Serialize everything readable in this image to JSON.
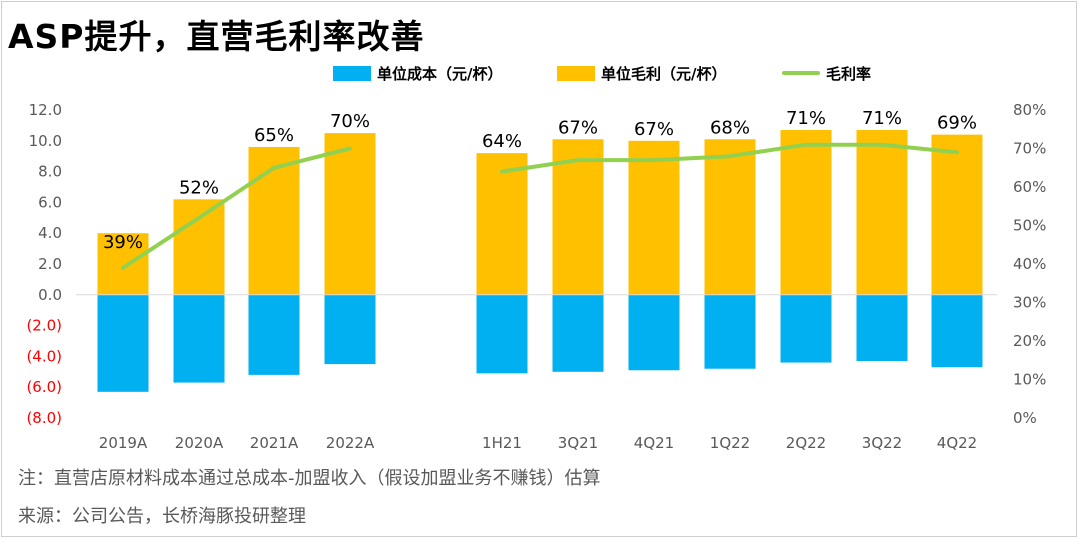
{
  "title": "ASP提升，直营毛利率改善",
  "legend": [
    {
      "label": "单位成本（元/杯）",
      "color": "#00B0F0",
      "kind": "bar"
    },
    {
      "label": "单位毛利（元/杯）",
      "color": "#FFC000",
      "kind": "bar"
    },
    {
      "label": "毛利率",
      "color": "#92D050",
      "kind": "line"
    }
  ],
  "chart_data": {
    "type": "bar",
    "categories": [
      "2019A",
      "2020A",
      "2021A",
      "2022A",
      "1H21",
      "3Q21",
      "4Q21",
      "1Q22",
      "2Q22",
      "3Q22",
      "4Q22"
    ],
    "series": [
      {
        "name": "单位成本（元/杯）",
        "values": [
          -6.3,
          -5.7,
          -5.2,
          -4.5,
          -5.1,
          -5.0,
          -4.9,
          -4.8,
          -4.4,
          -4.3,
          -4.7
        ]
      },
      {
        "name": "单位毛利（元/杯）",
        "values": [
          4.0,
          6.2,
          9.6,
          10.5,
          9.2,
          10.1,
          10.0,
          10.1,
          10.7,
          10.7,
          10.4
        ]
      },
      {
        "name": "毛利率",
        "values": [
          0.39,
          0.52,
          0.65,
          0.7,
          0.64,
          0.67,
          0.67,
          0.68,
          0.71,
          0.71,
          0.69
        ],
        "axis": "right"
      }
    ],
    "data_labels": [
      "39%",
      "52%",
      "65%",
      "70%",
      "64%",
      "67%",
      "67%",
      "68%",
      "71%",
      "71%",
      "69%"
    ],
    "line_groups": [
      [
        0,
        1,
        2,
        3
      ],
      [
        4,
        5,
        6,
        7,
        8,
        9,
        10
      ]
    ],
    "ylim": [
      -8,
      12
    ],
    "y_ticks": [
      12.0,
      10.0,
      8.0,
      6.0,
      4.0,
      2.0,
      0.0,
      -2.0,
      -4.0,
      -6.0,
      -8.0
    ],
    "y_tick_labels": [
      "12.0",
      "10.0",
      "8.0",
      "6.0",
      "4.0",
      "2.0",
      "0.0",
      "(2.0)",
      "(4.0)",
      "(6.0)",
      "(8.0)"
    ],
    "y2lim": [
      0,
      0.8
    ],
    "y2_ticks": [
      0.8,
      0.7,
      0.6,
      0.5,
      0.4,
      0.3,
      0.2,
      0.1,
      0.0
    ],
    "y2_tick_labels": [
      "80%",
      "70%",
      "60%",
      "50%",
      "40%",
      "30%",
      "20%",
      "10%",
      "0%"
    ],
    "negative_tick_color": "#FF0000",
    "grid": false,
    "legend_position": "top"
  },
  "notes": {
    "note": "注：直营店原材料成本通过总成本-加盟收入（假设加盟业务不赚钱）估算",
    "source": "来源：公司公告，长桥海豚投研整理"
  },
  "colors": {
    "cost": "#00B0F0",
    "profit": "#FFC000",
    "margin": "#92D050",
    "axis_text": "#595959",
    "negative": "#FF0000"
  }
}
